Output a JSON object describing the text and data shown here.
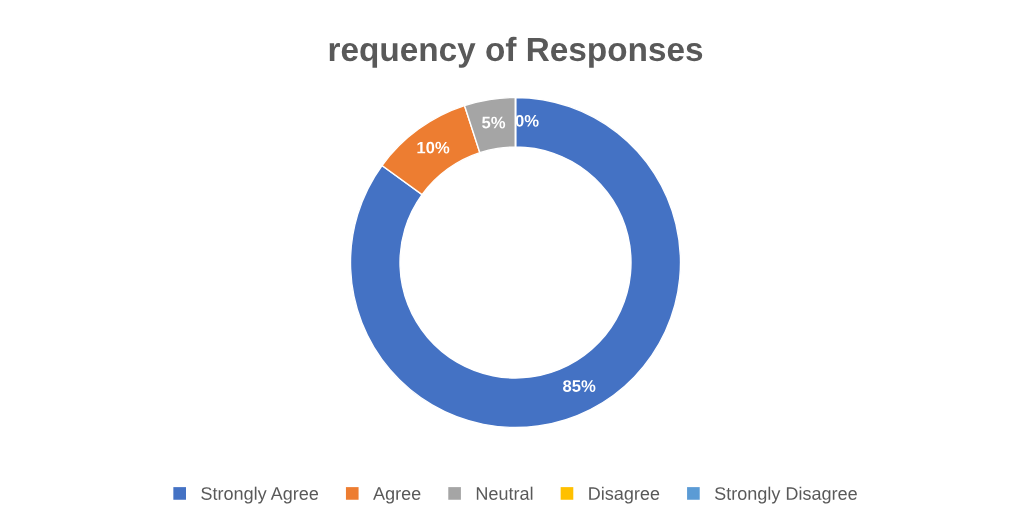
{
  "chart_data": {
    "type": "donut",
    "title": "requency of Responses",
    "categories": [
      "Strongly Agree",
      "Agree",
      "Neutral",
      "Disagree",
      "Strongly Disagree"
    ],
    "values": [
      85,
      10,
      5,
      0,
      0
    ],
    "colors": [
      "#4472c4",
      "#ed7d31",
      "#a5a5a5",
      "#ffc000",
      "#5b9bd5"
    ],
    "value_labels": [
      "85%",
      "10%",
      "5%",
      "0%",
      null
    ],
    "legend": "bottom"
  }
}
